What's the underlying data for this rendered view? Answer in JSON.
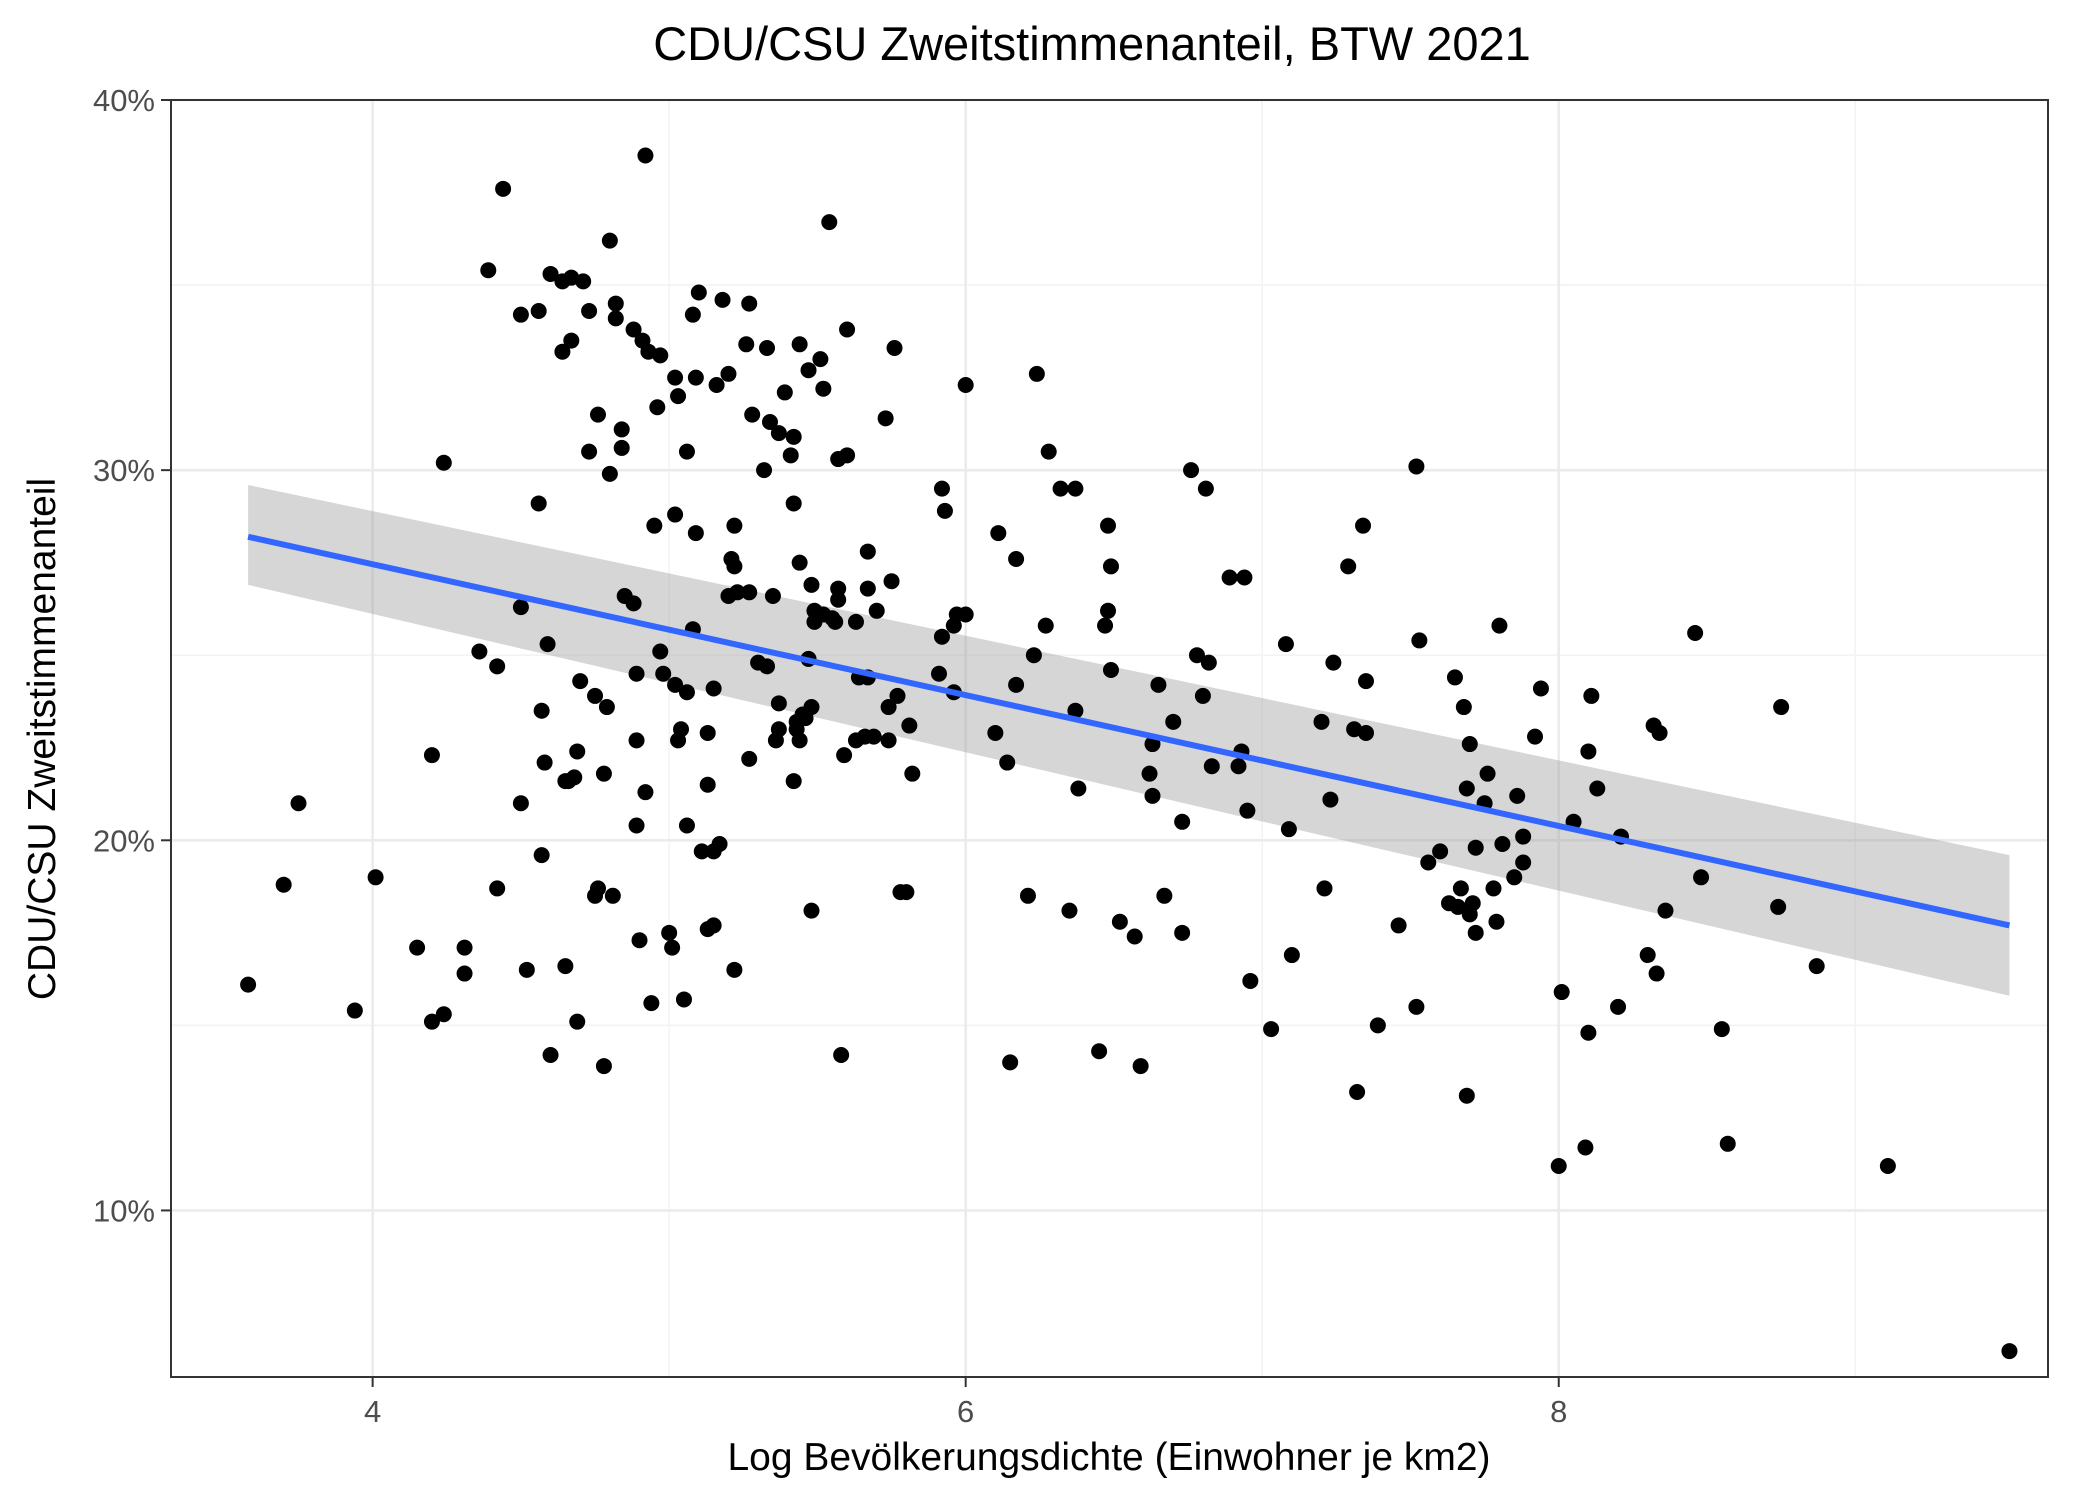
{
  "chart_data": {
    "type": "scatter",
    "title": "CDU/CSU Zweitstimmenanteil, BTW 2021",
    "xlabel": "Log Bevölkerungsdichte (Einwohner je km2)",
    "ylabel": "CDU/CSU Zweitstimmenanteil",
    "xlim": [
      3.32,
      9.65
    ],
    "ylim": [
      0.055,
      0.4
    ],
    "x_ticks": [
      4,
      6,
      8
    ],
    "x_tick_labels": [
      "4",
      "6",
      "8"
    ],
    "y_ticks": [
      0.1,
      0.2,
      0.3,
      0.4
    ],
    "y_tick_labels": [
      "10%",
      "20%",
      "30%",
      "40%"
    ],
    "grid": true,
    "legend": "none",
    "colors": {
      "points": "#000000",
      "fit_line": "#3366ff",
      "confidence_band": "#999999",
      "panel_border": "#333333",
      "grid": "#ebebeb"
    },
    "fit": {
      "method": "linear regression with 95% confidence band",
      "x": [
        3.58,
        9.52
      ],
      "y": [
        0.282,
        0.177
      ],
      "band_lower": [
        0.269,
        0.158
      ],
      "band_upper": [
        0.296,
        0.196
      ]
    },
    "points": [
      [
        3.58,
        0.161
      ],
      [
        3.7,
        0.188
      ],
      [
        3.75,
        0.21
      ],
      [
        3.94,
        0.154
      ],
      [
        4.01,
        0.19
      ],
      [
        4.15,
        0.171
      ],
      [
        4.2,
        0.223
      ],
      [
        4.2,
        0.151
      ],
      [
        4.24,
        0.302
      ],
      [
        4.24,
        0.153
      ],
      [
        4.31,
        0.171
      ],
      [
        4.31,
        0.164
      ],
      [
        4.36,
        0.251
      ],
      [
        4.39,
        0.354
      ],
      [
        4.42,
        0.247
      ],
      [
        4.42,
        0.187
      ],
      [
        4.44,
        0.376
      ],
      [
        4.5,
        0.342
      ],
      [
        4.5,
        0.263
      ],
      [
        4.5,
        0.21
      ],
      [
        4.52,
        0.165
      ],
      [
        4.56,
        0.343
      ],
      [
        4.56,
        0.291
      ],
      [
        4.57,
        0.235
      ],
      [
        4.57,
        0.196
      ],
      [
        4.58,
        0.221
      ],
      [
        4.59,
        0.253
      ],
      [
        4.6,
        0.353
      ],
      [
        4.6,
        0.142
      ],
      [
        4.64,
        0.332
      ],
      [
        4.64,
        0.351
      ],
      [
        4.65,
        0.216
      ],
      [
        4.65,
        0.166
      ],
      [
        4.66,
        0.216
      ],
      [
        4.67,
        0.352
      ],
      [
        4.67,
        0.335
      ],
      [
        4.68,
        0.217
      ],
      [
        4.69,
        0.224
      ],
      [
        4.69,
        0.151
      ],
      [
        4.7,
        0.243
      ],
      [
        4.71,
        0.351
      ],
      [
        4.73,
        0.343
      ],
      [
        4.73,
        0.305
      ],
      [
        4.75,
        0.239
      ],
      [
        4.75,
        0.185
      ],
      [
        4.76,
        0.187
      ],
      [
        4.76,
        0.315
      ],
      [
        4.78,
        0.139
      ],
      [
        4.78,
        0.218
      ],
      [
        4.79,
        0.236
      ],
      [
        4.8,
        0.362
      ],
      [
        4.8,
        0.299
      ],
      [
        4.81,
        0.185
      ],
      [
        4.82,
        0.341
      ],
      [
        4.82,
        0.345
      ],
      [
        4.84,
        0.311
      ],
      [
        4.84,
        0.306
      ],
      [
        4.85,
        0.266
      ],
      [
        4.88,
        0.338
      ],
      [
        4.88,
        0.264
      ],
      [
        4.89,
        0.227
      ],
      [
        4.89,
        0.204
      ],
      [
        4.89,
        0.245
      ],
      [
        4.9,
        0.173
      ],
      [
        4.91,
        0.335
      ],
      [
        4.92,
        0.385
      ],
      [
        4.92,
        0.213
      ],
      [
        4.93,
        0.332
      ],
      [
        4.94,
        0.156
      ],
      [
        4.95,
        0.285
      ],
      [
        4.96,
        0.317
      ],
      [
        4.97,
        0.331
      ],
      [
        4.97,
        0.251
      ],
      [
        4.98,
        0.245
      ],
      [
        5.0,
        0.175
      ],
      [
        5.01,
        0.171
      ],
      [
        5.02,
        0.288
      ],
      [
        5.02,
        0.325
      ],
      [
        5.02,
        0.242
      ],
      [
        5.03,
        0.227
      ],
      [
        5.03,
        0.32
      ],
      [
        5.04,
        0.23
      ],
      [
        5.05,
        0.157
      ],
      [
        5.06,
        0.305
      ],
      [
        5.06,
        0.204
      ],
      [
        5.06,
        0.24
      ],
      [
        5.08,
        0.342
      ],
      [
        5.08,
        0.257
      ],
      [
        5.09,
        0.325
      ],
      [
        5.09,
        0.283
      ],
      [
        5.1,
        0.348
      ],
      [
        5.11,
        0.197
      ],
      [
        5.13,
        0.229
      ],
      [
        5.13,
        0.215
      ],
      [
        5.13,
        0.176
      ],
      [
        5.15,
        0.177
      ],
      [
        5.15,
        0.197
      ],
      [
        5.15,
        0.241
      ],
      [
        5.16,
        0.323
      ],
      [
        5.17,
        0.199
      ],
      [
        5.18,
        0.346
      ],
      [
        5.2,
        0.326
      ],
      [
        5.2,
        0.266
      ],
      [
        5.21,
        0.276
      ],
      [
        5.22,
        0.285
      ],
      [
        5.22,
        0.274
      ],
      [
        5.22,
        0.165
      ],
      [
        5.23,
        0.267
      ],
      [
        5.26,
        0.334
      ],
      [
        5.27,
        0.345
      ],
      [
        5.27,
        0.222
      ],
      [
        5.27,
        0.267
      ],
      [
        5.28,
        0.315
      ],
      [
        5.3,
        0.248
      ],
      [
        5.32,
        0.3
      ],
      [
        5.33,
        0.333
      ],
      [
        5.33,
        0.247
      ],
      [
        5.34,
        0.313
      ],
      [
        5.35,
        0.266
      ],
      [
        5.36,
        0.227
      ],
      [
        5.37,
        0.23
      ],
      [
        5.37,
        0.31
      ],
      [
        5.37,
        0.237
      ],
      [
        5.39,
        0.321
      ],
      [
        5.41,
        0.304
      ],
      [
        5.42,
        0.216
      ],
      [
        5.42,
        0.309
      ],
      [
        5.42,
        0.291
      ],
      [
        5.43,
        0.232
      ],
      [
        5.43,
        0.23
      ],
      [
        5.44,
        0.334
      ],
      [
        5.44,
        0.275
      ],
      [
        5.44,
        0.227
      ],
      [
        5.45,
        0.234
      ],
      [
        5.46,
        0.233
      ],
      [
        5.47,
        0.327
      ],
      [
        5.47,
        0.249
      ],
      [
        5.48,
        0.236
      ],
      [
        5.48,
        0.181
      ],
      [
        5.48,
        0.269
      ],
      [
        5.49,
        0.262
      ],
      [
        5.49,
        0.259
      ],
      [
        5.51,
        0.33
      ],
      [
        5.52,
        0.322
      ],
      [
        5.52,
        0.261
      ],
      [
        5.54,
        0.367
      ],
      [
        5.55,
        0.26
      ],
      [
        5.56,
        0.259
      ],
      [
        5.57,
        0.268
      ],
      [
        5.57,
        0.303
      ],
      [
        5.57,
        0.265
      ],
      [
        5.58,
        0.142
      ],
      [
        5.59,
        0.223
      ],
      [
        5.6,
        0.304
      ],
      [
        5.6,
        0.338
      ],
      [
        5.63,
        0.259
      ],
      [
        5.63,
        0.227
      ],
      [
        5.64,
        0.244
      ],
      [
        5.66,
        0.228
      ],
      [
        5.67,
        0.268
      ],
      [
        5.67,
        0.278
      ],
      [
        5.67,
        0.244
      ],
      [
        5.69,
        0.228
      ],
      [
        5.7,
        0.262
      ],
      [
        5.73,
        0.314
      ],
      [
        5.74,
        0.236
      ],
      [
        5.74,
        0.227
      ],
      [
        5.75,
        0.27
      ],
      [
        5.76,
        0.333
      ],
      [
        5.77,
        0.239
      ],
      [
        5.78,
        0.186
      ],
      [
        5.8,
        0.186
      ],
      [
        5.81,
        0.231
      ],
      [
        5.82,
        0.218
      ],
      [
        5.91,
        0.245
      ],
      [
        5.92,
        0.255
      ],
      [
        5.92,
        0.295
      ],
      [
        5.93,
        0.289
      ],
      [
        5.96,
        0.24
      ],
      [
        5.96,
        0.258
      ],
      [
        5.97,
        0.261
      ],
      [
        6.0,
        0.323
      ],
      [
        6.0,
        0.261
      ],
      [
        6.1,
        0.229
      ],
      [
        6.11,
        0.283
      ],
      [
        6.14,
        0.221
      ],
      [
        6.15,
        0.14
      ],
      [
        6.17,
        0.276
      ],
      [
        6.17,
        0.242
      ],
      [
        6.21,
        0.185
      ],
      [
        6.23,
        0.25
      ],
      [
        6.24,
        0.326
      ],
      [
        6.27,
        0.258
      ],
      [
        6.28,
        0.305
      ],
      [
        6.32,
        0.295
      ],
      [
        6.35,
        0.181
      ],
      [
        6.37,
        0.295
      ],
      [
        6.37,
        0.235
      ],
      [
        6.38,
        0.214
      ],
      [
        6.45,
        0.143
      ],
      [
        6.47,
        0.258
      ],
      [
        6.48,
        0.262
      ],
      [
        6.48,
        0.285
      ],
      [
        6.49,
        0.246
      ],
      [
        6.49,
        0.274
      ],
      [
        6.52,
        0.178
      ],
      [
        6.57,
        0.174
      ],
      [
        6.59,
        0.139
      ],
      [
        6.62,
        0.218
      ],
      [
        6.63,
        0.212
      ],
      [
        6.63,
        0.226
      ],
      [
        6.65,
        0.242
      ],
      [
        6.67,
        0.185
      ],
      [
        6.7,
        0.232
      ],
      [
        6.73,
        0.175
      ],
      [
        6.73,
        0.205
      ],
      [
        6.76,
        0.3
      ],
      [
        6.78,
        0.25
      ],
      [
        6.8,
        0.239
      ],
      [
        6.81,
        0.295
      ],
      [
        6.82,
        0.248
      ],
      [
        6.83,
        0.22
      ],
      [
        6.89,
        0.271
      ],
      [
        6.92,
        0.22
      ],
      [
        6.93,
        0.224
      ],
      [
        6.94,
        0.271
      ],
      [
        6.95,
        0.208
      ],
      [
        6.96,
        0.162
      ],
      [
        7.03,
        0.149
      ],
      [
        7.08,
        0.253
      ],
      [
        7.09,
        0.203
      ],
      [
        7.1,
        0.169
      ],
      [
        7.2,
        0.232
      ],
      [
        7.21,
        0.187
      ],
      [
        7.23,
        0.211
      ],
      [
        7.24,
        0.248
      ],
      [
        7.29,
        0.274
      ],
      [
        7.31,
        0.23
      ],
      [
        7.32,
        0.132
      ],
      [
        7.34,
        0.285
      ],
      [
        7.35,
        0.243
      ],
      [
        7.35,
        0.229
      ],
      [
        7.39,
        0.15
      ],
      [
        7.46,
        0.177
      ],
      [
        7.52,
        0.301
      ],
      [
        7.52,
        0.155
      ],
      [
        7.53,
        0.254
      ],
      [
        7.56,
        0.194
      ],
      [
        7.6,
        0.197
      ],
      [
        7.63,
        0.183
      ],
      [
        7.65,
        0.244
      ],
      [
        7.66,
        0.182
      ],
      [
        7.67,
        0.187
      ],
      [
        7.68,
        0.236
      ],
      [
        7.69,
        0.131
      ],
      [
        7.69,
        0.214
      ],
      [
        7.7,
        0.18
      ],
      [
        7.7,
        0.226
      ],
      [
        7.71,
        0.183
      ],
      [
        7.72,
        0.198
      ],
      [
        7.72,
        0.175
      ],
      [
        7.75,
        0.21
      ],
      [
        7.76,
        0.218
      ],
      [
        7.78,
        0.187
      ],
      [
        7.79,
        0.178
      ],
      [
        7.8,
        0.258
      ],
      [
        7.81,
        0.199
      ],
      [
        7.85,
        0.19
      ],
      [
        7.86,
        0.212
      ],
      [
        7.88,
        0.201
      ],
      [
        7.88,
        0.194
      ],
      [
        7.92,
        0.228
      ],
      [
        7.94,
        0.241
      ],
      [
        8.0,
        0.112
      ],
      [
        8.01,
        0.159
      ],
      [
        8.05,
        0.205
      ],
      [
        8.09,
        0.117
      ],
      [
        8.1,
        0.224
      ],
      [
        8.1,
        0.148
      ],
      [
        8.11,
        0.239
      ],
      [
        8.13,
        0.214
      ],
      [
        8.2,
        0.155
      ],
      [
        8.21,
        0.201
      ],
      [
        8.3,
        0.169
      ],
      [
        8.32,
        0.231
      ],
      [
        8.33,
        0.164
      ],
      [
        8.34,
        0.229
      ],
      [
        8.36,
        0.181
      ],
      [
        8.46,
        0.256
      ],
      [
        8.48,
        0.19
      ],
      [
        8.55,
        0.149
      ],
      [
        8.57,
        0.118
      ],
      [
        8.74,
        0.182
      ],
      [
        8.75,
        0.236
      ],
      [
        8.87,
        0.166
      ],
      [
        9.11,
        0.112
      ],
      [
        9.52,
        0.062
      ]
    ]
  }
}
